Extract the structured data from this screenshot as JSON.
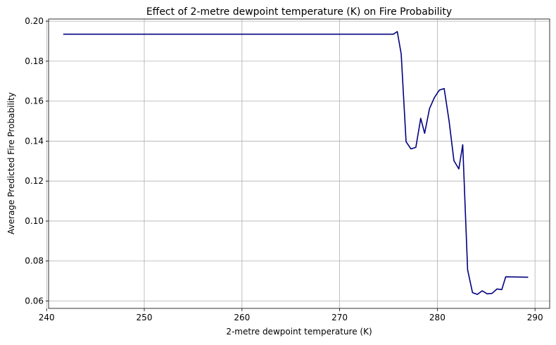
{
  "chart_data": {
    "type": "line",
    "title": "Effect of 2-metre dewpoint temperature (K) on Fire Probability",
    "xlabel": "2-metre dewpoint temperature (K)",
    "ylabel": "Average Predicted Fire Probability",
    "xlim": [
      240.2,
      291.5
    ],
    "ylim": [
      0.0563,
      0.2011
    ],
    "xticks": [
      240,
      250,
      260,
      270,
      280,
      290
    ],
    "yticks": [
      0.06,
      0.08,
      0.1,
      0.12,
      0.14,
      0.16,
      0.18,
      0.2
    ],
    "ytick_labels": [
      "0.06",
      "0.08",
      "0.10",
      "0.12",
      "0.14",
      "0.16",
      "0.18",
      "0.20"
    ],
    "grid": true,
    "series": [
      {
        "name": "Fire Probability",
        "color": "#000080",
        "x": [
          241.7,
          275.5,
          275.9,
          276.3,
          276.8,
          277.3,
          277.8,
          278.3,
          278.7,
          279.2,
          279.7,
          280.2,
          280.7,
          281.2,
          281.7,
          282.2,
          282.6,
          283.1,
          283.6,
          284.1,
          284.6,
          285.1,
          285.6,
          286.1,
          286.6,
          287.0,
          289.3
        ],
        "values": [
          0.1935,
          0.1935,
          0.1948,
          0.1836,
          0.1397,
          0.1361,
          0.1369,
          0.1514,
          0.1439,
          0.1563,
          0.1618,
          0.1655,
          0.1663,
          0.1502,
          0.1302,
          0.1261,
          0.1382,
          0.0756,
          0.0642,
          0.0633,
          0.0651,
          0.0636,
          0.0638,
          0.066,
          0.0657,
          0.0721,
          0.0719
        ]
      }
    ]
  }
}
